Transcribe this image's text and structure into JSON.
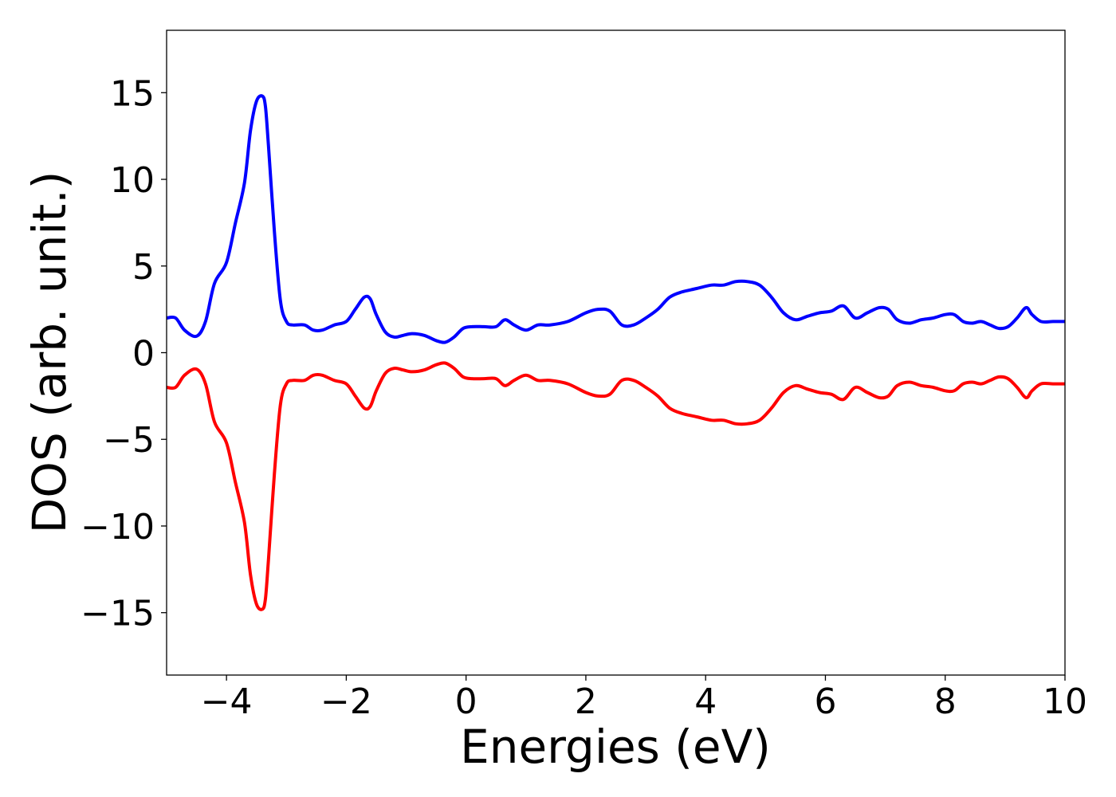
{
  "chart_data": {
    "type": "line",
    "title": "",
    "xlabel": "Energies (eV)",
    "ylabel": "DOS (arb. unit.)",
    "xlim": [
      -5,
      10
    ],
    "ylim": [
      -18.6,
      18.6
    ],
    "x_ticks": [
      -4,
      -2,
      0,
      2,
      4,
      6,
      8,
      10
    ],
    "x_tick_labels": [
      "−4",
      "−2",
      "0",
      "2",
      "4",
      "6",
      "8",
      "10"
    ],
    "y_ticks": [
      15,
      10,
      5,
      0,
      -5,
      -10,
      -15
    ],
    "y_tick_labels": [
      "15",
      "10",
      "5",
      "0",
      "−5",
      "−10",
      "−15"
    ],
    "grid": false,
    "legend": "none",
    "series": [
      {
        "color": "#0000ff",
        "x": [
          -5.0,
          -4.85,
          -4.7,
          -4.5,
          -4.35,
          -4.2,
          -4.0,
          -3.85,
          -3.7,
          -3.6,
          -3.5,
          -3.4,
          -3.35,
          -3.3,
          -3.2,
          -3.1,
          -3.0,
          -2.9,
          -2.7,
          -2.55,
          -2.4,
          -2.2,
          -2.0,
          -1.85,
          -1.7,
          -1.6,
          -1.5,
          -1.35,
          -1.2,
          -1.05,
          -0.9,
          -0.7,
          -0.5,
          -0.35,
          -0.2,
          -0.05,
          0.1,
          0.3,
          0.5,
          0.65,
          0.8,
          1.0,
          1.2,
          1.4,
          1.7,
          2.0,
          2.2,
          2.4,
          2.6,
          2.8,
          3.0,
          3.2,
          3.4,
          3.6,
          3.85,
          4.1,
          4.3,
          4.5,
          4.7,
          4.9,
          5.1,
          5.3,
          5.5,
          5.7,
          5.9,
          6.1,
          6.3,
          6.5,
          6.7,
          6.9,
          7.05,
          7.2,
          7.4,
          7.6,
          7.8,
          8.0,
          8.15,
          8.3,
          8.45,
          8.6,
          8.75,
          8.9,
          9.05,
          9.2,
          9.35,
          9.45,
          9.6,
          9.8,
          10.0
        ],
        "values": [
          2.0,
          2.0,
          1.3,
          0.95,
          1.8,
          4.0,
          5.2,
          7.5,
          9.8,
          12.8,
          14.5,
          14.8,
          14.2,
          12.0,
          7.0,
          3.0,
          1.8,
          1.6,
          1.6,
          1.3,
          1.3,
          1.6,
          1.8,
          2.5,
          3.2,
          3.1,
          2.2,
          1.2,
          0.9,
          1.0,
          1.1,
          1.0,
          0.7,
          0.6,
          0.9,
          1.4,
          1.5,
          1.5,
          1.5,
          1.9,
          1.6,
          1.3,
          1.6,
          1.6,
          1.8,
          2.3,
          2.5,
          2.4,
          1.6,
          1.6,
          2.0,
          2.5,
          3.2,
          3.5,
          3.7,
          3.9,
          3.9,
          4.1,
          4.1,
          3.9,
          3.2,
          2.3,
          1.9,
          2.1,
          2.3,
          2.4,
          2.7,
          2.0,
          2.3,
          2.6,
          2.5,
          1.9,
          1.7,
          1.9,
          2.0,
          2.2,
          2.2,
          1.8,
          1.7,
          1.8,
          1.6,
          1.4,
          1.5,
          2.0,
          2.6,
          2.2,
          1.8,
          1.8,
          1.8
        ]
      },
      {
        "color": "#ff0000",
        "x": [
          -5.0,
          -4.85,
          -4.7,
          -4.5,
          -4.35,
          -4.2,
          -4.0,
          -3.85,
          -3.7,
          -3.6,
          -3.5,
          -3.4,
          -3.35,
          -3.3,
          -3.2,
          -3.1,
          -3.0,
          -2.9,
          -2.7,
          -2.55,
          -2.4,
          -2.2,
          -2.0,
          -1.85,
          -1.7,
          -1.6,
          -1.5,
          -1.35,
          -1.2,
          -1.05,
          -0.9,
          -0.7,
          -0.5,
          -0.35,
          -0.2,
          -0.05,
          0.1,
          0.3,
          0.5,
          0.65,
          0.8,
          1.0,
          1.2,
          1.4,
          1.7,
          2.0,
          2.2,
          2.4,
          2.6,
          2.8,
          3.0,
          3.2,
          3.4,
          3.6,
          3.85,
          4.1,
          4.3,
          4.5,
          4.7,
          4.9,
          5.1,
          5.3,
          5.5,
          5.7,
          5.9,
          6.1,
          6.3,
          6.5,
          6.7,
          6.9,
          7.05,
          7.2,
          7.4,
          7.6,
          7.8,
          8.0,
          8.15,
          8.3,
          8.45,
          8.6,
          8.75,
          8.9,
          9.05,
          9.2,
          9.35,
          9.45,
          9.6,
          9.8,
          10.0
        ],
        "values": [
          -2.0,
          -2.0,
          -1.3,
          -0.95,
          -1.8,
          -4.0,
          -5.2,
          -7.5,
          -9.8,
          -12.8,
          -14.5,
          -14.8,
          -14.2,
          -12.0,
          -7.0,
          -3.0,
          -1.8,
          -1.6,
          -1.6,
          -1.3,
          -1.3,
          -1.6,
          -1.8,
          -2.5,
          -3.2,
          -3.1,
          -2.2,
          -1.2,
          -0.9,
          -1.0,
          -1.1,
          -1.0,
          -0.7,
          -0.6,
          -0.9,
          -1.4,
          -1.5,
          -1.5,
          -1.5,
          -1.9,
          -1.6,
          -1.3,
          -1.6,
          -1.6,
          -1.8,
          -2.3,
          -2.5,
          -2.4,
          -1.6,
          -1.6,
          -2.0,
          -2.5,
          -3.2,
          -3.5,
          -3.7,
          -3.9,
          -3.9,
          -4.1,
          -4.1,
          -3.9,
          -3.2,
          -2.3,
          -1.9,
          -2.1,
          -2.3,
          -2.4,
          -2.7,
          -2.0,
          -2.3,
          -2.6,
          -2.5,
          -1.9,
          -1.7,
          -1.9,
          -2.0,
          -2.2,
          -2.2,
          -1.8,
          -1.7,
          -1.8,
          -1.6,
          -1.4,
          -1.5,
          -2.0,
          -2.6,
          -2.2,
          -1.8,
          -1.8,
          -1.8
        ]
      }
    ]
  }
}
